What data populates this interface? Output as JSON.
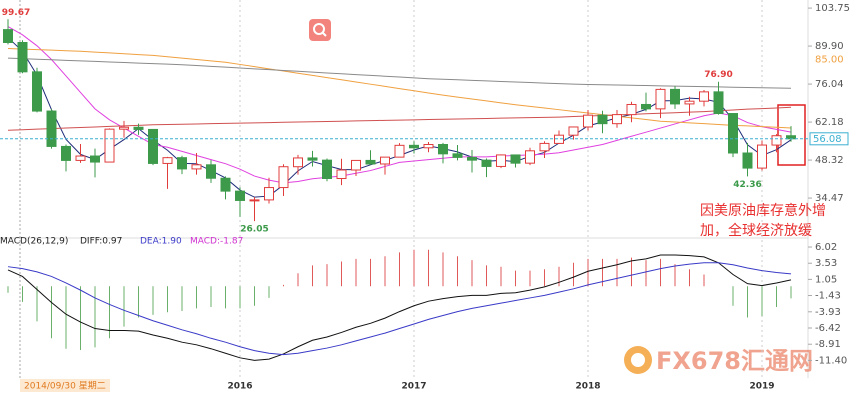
{
  "chart_data": [
    {
      "type": "candlestick",
      "categories": [
        null,
        null,
        null,
        null,
        null,
        null,
        null,
        null,
        null,
        null,
        null,
        null,
        null,
        null,
        null,
        null,
        "2016",
        null,
        null,
        null,
        null,
        null,
        null,
        null,
        null,
        null,
        null,
        null,
        "2017",
        null,
        null,
        null,
        null,
        null,
        null,
        null,
        null,
        null,
        null,
        null,
        "2018",
        null,
        null,
        null,
        null,
        null,
        null,
        null,
        null,
        null,
        null,
        null,
        "2019",
        null,
        null
      ],
      "open": [
        95.9,
        91.2,
        80.5,
        66.2,
        53.3,
        48.2,
        49.8,
        47.6,
        59.6,
        60.3,
        59.5,
        47.1,
        49.2,
        45.1,
        46.6,
        41.7,
        37.0,
        33.6,
        33.8,
        38.3,
        45.9,
        49.1,
        48.3,
        41.6,
        44.7,
        48.2,
        46.9,
        49.4,
        53.7,
        52.8,
        54.0,
        50.6,
        49.3,
        48.3,
        46.0,
        50.2,
        47.2,
        51.7,
        54.4,
        57.4,
        60.4,
        64.7,
        61.6,
        64.9,
        68.6,
        67.0,
        74.1,
        68.8,
        69.8,
        73.2,
        65.3,
        50.9,
        45.4,
        53.8,
        57.2
      ],
      "high": [
        99.67,
        92.0,
        82.0,
        67.0,
        54.0,
        54.2,
        52.5,
        59.9,
        62.6,
        61.6,
        59.6,
        49.5,
        49.9,
        50.9,
        48.3,
        42.4,
        38.4,
        34.8,
        41.9,
        46.8,
        50.2,
        51.7,
        48.9,
        48.8,
        48.3,
        51.9,
        49.2,
        54.5,
        55.2,
        54.9,
        54.6,
        53.8,
        52.0,
        48.9,
        50.4,
        50.2,
        52.8,
        55.2,
        59.1,
        60.5,
        66.6,
        66.3,
        66.6,
        69.6,
        72.9,
        74.5,
        75.3,
        71.4,
        73.9,
        76.9,
        65.3,
        54.6,
        55.4,
        57.8,
        60.7
      ],
      "low": [
        90.5,
        80.0,
        65.7,
        52.5,
        44.2,
        47.3,
        42.0,
        47.5,
        56.5,
        57.5,
        46.5,
        37.8,
        43.2,
        43.0,
        40.0,
        34.0,
        27.6,
        26.05,
        32.5,
        35.2,
        43.0,
        46.0,
        40.6,
        39.2,
        42.5,
        46.6,
        43.0,
        49.3,
        50.7,
        51.2,
        47.1,
        48.2,
        43.8,
        42.1,
        45.4,
        45.6,
        46.5,
        49.1,
        54.2,
        55.8,
        59.1,
        58.1,
        60.1,
        62.1,
        66.1,
        63.6,
        67.0,
        64.5,
        67.9,
        64.9,
        49.4,
        42.36,
        44.5,
        51.2,
        55.0
      ],
      "close": [
        91.2,
        80.5,
        66.2,
        53.3,
        48.2,
        49.8,
        47.6,
        59.6,
        60.3,
        59.5,
        47.1,
        49.2,
        45.1,
        46.6,
        41.7,
        37.0,
        33.6,
        33.8,
        38.3,
        45.9,
        49.1,
        48.3,
        41.6,
        44.7,
        48.2,
        46.9,
        49.4,
        53.7,
        52.8,
        54.0,
        50.6,
        49.3,
        48.3,
        46.0,
        50.2,
        47.2,
        51.7,
        54.4,
        57.4,
        60.4,
        64.7,
        61.6,
        64.9,
        68.6,
        67.0,
        74.1,
        68.8,
        69.8,
        73.2,
        65.3,
        50.9,
        45.4,
        53.8,
        57.2,
        56.08
      ],
      "up_color": "#e03c3c",
      "down_color": "#3c9a4a",
      "lines": [
        {
          "color": "#1f2d7a",
          "values": [
            93,
            88,
            79.3,
            66.7,
            55.9,
            50.4,
            48.5,
            52.3,
            55.8,
            59.8,
            55.6,
            51.9,
            47.1,
            47.0,
            44.5,
            41.8,
            37.4,
            34.8,
            35.2,
            39.3,
            44.4,
            47.8,
            46.3,
            44.9,
            44.8,
            46.6,
            48.2,
            50.0,
            52.0,
            53.5,
            52.5,
            51.3,
            49.4,
            47.9,
            48.2,
            47.8,
            49.7,
            51.1,
            54.5,
            57.4,
            60.8,
            62.2,
            63.7,
            65.0,
            66.8,
            69.9,
            70.0,
            70.9,
            70.6,
            69.4,
            63.1,
            53.9,
            50.0,
            52.1,
            55.7
          ]
        },
        {
          "color": "#e040e0",
          "values": [
            97,
            94,
            90,
            85,
            79,
            73,
            67,
            63,
            60,
            57,
            54,
            53,
            51.5,
            50,
            48.5,
            47,
            45,
            42.5,
            41,
            40,
            40.5,
            41.5,
            42,
            42.5,
            43.5,
            44.5,
            46,
            47.5,
            48,
            48.5,
            49,
            49.5,
            49.5,
            49.5,
            49.8,
            50,
            50.2,
            50.5,
            51,
            52,
            53,
            54,
            55.5,
            57,
            58.5,
            60,
            61.5,
            63,
            64.5,
            65.5,
            64.5,
            62,
            60.5,
            59.5,
            58.5
          ]
        },
        {
          "color": "#f0a040",
          "values": [
            89,
            88.8,
            88.6,
            88.4,
            88.2,
            88,
            87.7,
            87.4,
            87.1,
            86.8,
            86.5,
            86,
            85.5,
            85,
            84.5,
            84,
            83.2,
            82.4,
            81.6,
            80.8,
            80,
            79.2,
            78.4,
            77.6,
            76.8,
            76,
            75.2,
            74.4,
            73.6,
            72.8,
            72,
            71.3,
            70.6,
            69.9,
            69.2,
            68.5,
            67.9,
            67.3,
            66.7,
            66.1,
            65.5,
            64.9,
            64.3,
            63.7,
            63.1,
            62.5,
            62.2,
            61.9,
            61.6,
            61.3,
            61,
            60.8,
            60.5,
            60.3,
            60
          ]
        },
        {
          "color": "#8a8a8a",
          "values": [
            85.5,
            85.3,
            85.1,
            84.9,
            84.7,
            84.5,
            84.3,
            84.1,
            83.9,
            83.7,
            83.5,
            83.3,
            83.1,
            82.8,
            82.5,
            82.2,
            81.9,
            81.6,
            81.3,
            81,
            80.7,
            80.4,
            80.1,
            79.8,
            79.5,
            79.2,
            78.9,
            78.6,
            78.3,
            78,
            77.8,
            77.6,
            77.4,
            77.2,
            77,
            76.8,
            76.6,
            76.4,
            76.2,
            76,
            75.9,
            75.8,
            75.7,
            75.6,
            75.5,
            75.4,
            75.3,
            75.2,
            75.1,
            75,
            74.9,
            74.8,
            74.7,
            74.6,
            74.5
          ]
        },
        {
          "color": "#d05050",
          "values": [
            59.2,
            59.4,
            59.6,
            59.8,
            60,
            60.2,
            60.4,
            60.6,
            60.8,
            61,
            61.2,
            61.3,
            61.4,
            61.5,
            61.6,
            61.7,
            61.8,
            61.9,
            62,
            62.1,
            62.2,
            62.3,
            62.4,
            62.5,
            62.6,
            62.7,
            62.8,
            62.9,
            63,
            63.1,
            63.2,
            63.3,
            63.4,
            63.5,
            63.6,
            63.7,
            63.8,
            63.9,
            64,
            64.2,
            64.4,
            64.6,
            64.8,
            65,
            65.2,
            65.4,
            65.6,
            65.8,
            66,
            66.3,
            66.6,
            66.9,
            67.1,
            67.3,
            67.6
          ]
        }
      ],
      "ylim": [
        21,
        106.7
      ],
      "yticks": [
        103.75,
        {
          "value": 89.9,
          "label": "89.90"
        },
        76.04,
        62.18,
        48.32,
        34.47
      ],
      "ref_label": {
        "value": 85,
        "label": "85.00"
      },
      "last_price": 56.08,
      "extreme_labels": [
        99.67,
        {
          "value": 76.9,
          "label": "76.90"
        },
        26.05,
        42.36
      ],
      "annotation": [
        "因美原油库存意外增",
        "加，全球经济放缓"
      ],
      "cursor_label": "2014/09/30 星期二"
    },
    {
      "type": "macd",
      "header": {
        "params": "MACD(26,12,9)",
        "diff": "DIFF:0.97",
        "dea": "DEA:1.90",
        "macd": "MACD:-1.87"
      },
      "series": [
        {
          "name": "DIFF",
          "color": "#111111",
          "values": [
            2.5,
            1.5,
            -0.5,
            -2.5,
            -4.3,
            -5.5,
            -6.5,
            -6.8,
            -6.8,
            -6.9,
            -7.5,
            -8,
            -8.6,
            -9,
            -9.6,
            -10.3,
            -11,
            -11.4,
            -11.2,
            -10.4,
            -9.3,
            -8.3,
            -7.8,
            -7.1,
            -6.3,
            -5.7,
            -4.9,
            -3.9,
            -3.0,
            -2.3,
            -1.9,
            -1.6,
            -1.4,
            -1.4,
            -1.1,
            -1.0,
            -0.6,
            -0.1,
            0.6,
            1.4,
            2.3,
            2.8,
            3.3,
            3.9,
            4.2,
            4.8,
            4.8,
            4.7,
            4.5,
            3.6,
            1.8,
            0.4,
            0.1,
            0.5,
            0.97
          ]
        },
        {
          "name": "DEA",
          "color": "#3a3ac8",
          "values": [
            3.0,
            2.7,
            2.2,
            1.5,
            0.5,
            -0.6,
            -1.8,
            -2.8,
            -3.7,
            -4.5,
            -5.3,
            -6.0,
            -6.7,
            -7.3,
            -8.0,
            -8.6,
            -9.3,
            -9.9,
            -10.3,
            -10.5,
            -10.3,
            -9.9,
            -9.5,
            -9.0,
            -8.4,
            -7.8,
            -7.2,
            -6.5,
            -5.8,
            -5.1,
            -4.5,
            -3.9,
            -3.4,
            -3.0,
            -2.6,
            -2.2,
            -1.8,
            -1.4,
            -0.9,
            -0.4,
            0.2,
            0.7,
            1.2,
            1.7,
            2.2,
            2.7,
            3.1,
            3.4,
            3.6,
            3.6,
            3.3,
            2.8,
            2.4,
            2.1,
            1.9
          ]
        }
      ],
      "histogram": [
        -1.0,
        -2.4,
        -5.4,
        -8.0,
        -9.6,
        -9.8,
        -9.4,
        -8.0,
        -6.2,
        -4.8,
        -4.4,
        -4.0,
        -3.8,
        -3.4,
        -3.2,
        -3.4,
        -3.4,
        -3.0,
        -1.8,
        0.2,
        2.0,
        3.2,
        3.4,
        3.8,
        4.2,
        4.2,
        4.6,
        5.2,
        5.6,
        5.6,
        5.2,
        4.6,
        4.0,
        3.2,
        3.0,
        2.4,
        2.4,
        2.6,
        3.0,
        3.6,
        4.2,
        4.2,
        4.2,
        4.4,
        4.0,
        4.2,
        3.4,
        2.6,
        1.8,
        0,
        -3.0,
        -4.8,
        -4.6,
        -3.2,
        -1.87
      ],
      "ylim": [
        -14.1,
        7.1
      ],
      "yticks": [
        6.02,
        3.53,
        1.05,
        -1.43,
        -3.93,
        -6.42,
        -8.91,
        {
          "value": -11.4,
          "label": "-11.40"
        }
      ]
    }
  ],
  "watermark": "FX678汇通网"
}
